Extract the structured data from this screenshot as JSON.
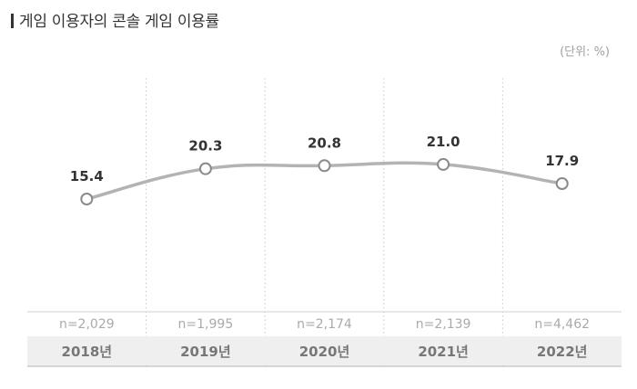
{
  "title": "게임 이용자의 콘솔 게임 이용률",
  "unit_label": "(단위: %)",
  "chart_data": {
    "type": "line",
    "categories": [
      "2018년",
      "2019년",
      "2020년",
      "2021년",
      "2022년"
    ],
    "sample_sizes": [
      "n=2,029",
      "n=1,995",
      "n=2,174",
      "n=2,139",
      "n=4,462"
    ],
    "series": [
      {
        "values": [
          15.4,
          20.3,
          20.8,
          21.0,
          17.9
        ]
      }
    ],
    "value_labels": [
      "15.4",
      "20.3",
      "20.8",
      "21.0",
      "17.9"
    ],
    "colors": {
      "line": "#b3b3b3",
      "marker_fill": "#ffffff",
      "marker_stroke": "#8a8a8a",
      "category_band": "#efefef"
    }
  }
}
